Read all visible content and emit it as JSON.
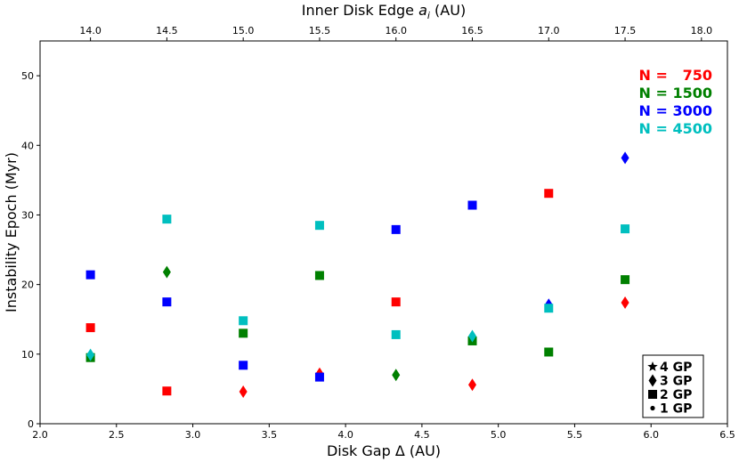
{
  "chart_data": {
    "type": "scatter",
    "xlabel": "Disk Gap Δ (AU)",
    "ylabel": "Instability Epoch (Myr)",
    "top_xlabel_prefix": "Inner Disk Edge ",
    "top_xlabel_sym": "a",
    "top_xlabel_sub": "i",
    "top_xlabel_suffix": " (AU)",
    "xlim": [
      2.0,
      6.5
    ],
    "ylim": [
      0,
      55
    ],
    "top_xlim": [
      13.67,
      18.17
    ],
    "xticks": [
      "2.0",
      "2.5",
      "3.0",
      "3.5",
      "4.0",
      "4.5",
      "5.0",
      "5.5",
      "6.0",
      "6.5"
    ],
    "yticks": [
      "0",
      "10",
      "20",
      "30",
      "40",
      "50"
    ],
    "top_xticks": [
      "14.0",
      "14.5",
      "15.0",
      "15.5",
      "16.0",
      "16.5",
      "17.0",
      "17.5",
      "18.0"
    ],
    "grid": false,
    "series": [
      {
        "name": "N =   750",
        "color": "#ff0000",
        "points": [
          {
            "x": 2.33,
            "y": 13.8,
            "gp": 2
          },
          {
            "x": 2.83,
            "y": 4.7,
            "gp": 2
          },
          {
            "x": 3.33,
            "y": 4.6,
            "gp": 3
          },
          {
            "x": 3.83,
            "y": 7.2,
            "gp": 3
          },
          {
            "x": 4.33,
            "y": 17.5,
            "gp": 2
          },
          {
            "x": 4.83,
            "y": 5.6,
            "gp": 3
          },
          {
            "x": 5.33,
            "y": 33.1,
            "gp": 2
          },
          {
            "x": 5.83,
            "y": 17.4,
            "gp": 3
          }
        ]
      },
      {
        "name": "N = 1500",
        "color": "#008000",
        "points": [
          {
            "x": 2.33,
            "y": 9.5,
            "gp": 2
          },
          {
            "x": 2.83,
            "y": 21.8,
            "gp": 3
          },
          {
            "x": 3.33,
            "y": 13.0,
            "gp": 2
          },
          {
            "x": 3.83,
            "y": 21.3,
            "gp": 2
          },
          {
            "x": 4.33,
            "y": 7.0,
            "gp": 3
          },
          {
            "x": 4.83,
            "y": 11.9,
            "gp": 2
          },
          {
            "x": 5.33,
            "y": 10.3,
            "gp": 2
          },
          {
            "x": 5.83,
            "y": 20.7,
            "gp": 2
          }
        ]
      },
      {
        "name": "N = 3000",
        "color": "#0000ff",
        "points": [
          {
            "x": 2.33,
            "y": 21.4,
            "gp": 2
          },
          {
            "x": 2.83,
            "y": 17.5,
            "gp": 2
          },
          {
            "x": 3.33,
            "y": 8.4,
            "gp": 2
          },
          {
            "x": 3.83,
            "y": 6.7,
            "gp": 2
          },
          {
            "x": 4.33,
            "y": 27.9,
            "gp": 2
          },
          {
            "x": 4.83,
            "y": 31.4,
            "gp": 2
          },
          {
            "x": 5.33,
            "y": 17.1,
            "gp": 3
          },
          {
            "x": 5.83,
            "y": 38.2,
            "gp": 3
          }
        ]
      },
      {
        "name": "N = 4500",
        "color": "#00bfbf",
        "points": [
          {
            "x": 2.33,
            "y": 9.9,
            "gp": 3
          },
          {
            "x": 2.83,
            "y": 29.4,
            "gp": 2
          },
          {
            "x": 3.33,
            "y": 14.8,
            "gp": 2
          },
          {
            "x": 3.83,
            "y": 28.5,
            "gp": 2
          },
          {
            "x": 4.33,
            "y": 12.8,
            "gp": 2
          },
          {
            "x": 4.83,
            "y": 12.6,
            "gp": 3
          },
          {
            "x": 5.33,
            "y": 16.6,
            "gp": 2
          },
          {
            "x": 5.83,
            "y": 28.0,
            "gp": 2
          }
        ]
      }
    ],
    "marker_legend": [
      {
        "marker": "star",
        "label": "4 GP"
      },
      {
        "marker": "diamond",
        "label": "3 GP"
      },
      {
        "marker": "square",
        "label": "2 GP"
      },
      {
        "marker": "dot",
        "label": "1 GP"
      }
    ],
    "legend_placement": "top-right (N labels), bottom-right (GP markers)"
  }
}
